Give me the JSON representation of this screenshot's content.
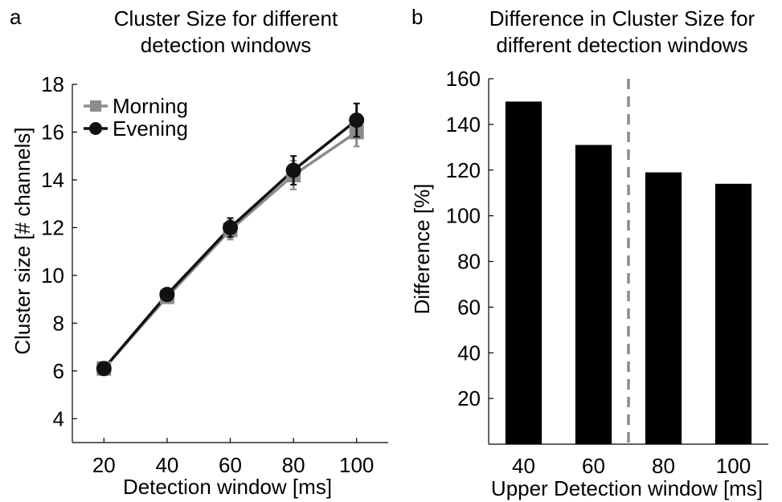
{
  "panels": {
    "a": {
      "letter": "a",
      "title_line1": "Cluster Size for different",
      "title_line2": "detection windows"
    },
    "b": {
      "letter": "b",
      "title_line1": "Difference in Cluster Size for",
      "title_line2": "different detection windows"
    }
  },
  "chart_data": [
    {
      "type": "line",
      "panel": "a",
      "title": "Cluster Size for different detection windows",
      "xlabel": "Detection window [ms]",
      "ylabel": "Cluster size [# channels]",
      "x": [
        20,
        40,
        60,
        80,
        100
      ],
      "xticks": [
        20,
        40,
        60,
        80,
        100
      ],
      "yticks": [
        4,
        6,
        8,
        10,
        12,
        14,
        16,
        18
      ],
      "xlim": [
        10,
        110
      ],
      "ylim": [
        3,
        18
      ],
      "legend_position": "top-left",
      "series": [
        {
          "name": "Morning",
          "marker": "square",
          "color": "#8c8c8c",
          "values": [
            6.1,
            9.1,
            11.9,
            14.2,
            16.0
          ],
          "error": [
            0.2,
            0.25,
            0.4,
            0.6,
            0.6
          ]
        },
        {
          "name": "Evening",
          "marker": "circle",
          "color": "#111111",
          "values": [
            6.1,
            9.2,
            12.0,
            14.4,
            16.5
          ],
          "error": [
            0.2,
            0.2,
            0.4,
            0.6,
            0.7
          ]
        }
      ]
    },
    {
      "type": "bar",
      "panel": "b",
      "title": "Difference in Cluster Size for different detection windows",
      "xlabel": "Upper Detection window [ms]",
      "ylabel": "Difference [%]",
      "categories": [
        "40",
        "60",
        "80",
        "100"
      ],
      "values": [
        150,
        131,
        119,
        114
      ],
      "yticks": [
        20,
        40,
        60,
        80,
        100,
        120,
        140,
        160
      ],
      "ylim": [
        0,
        160
      ],
      "color": "#000000",
      "divider": {
        "after_category_index": 1,
        "style": "dashed",
        "color": "#8c8c8c"
      }
    }
  ]
}
